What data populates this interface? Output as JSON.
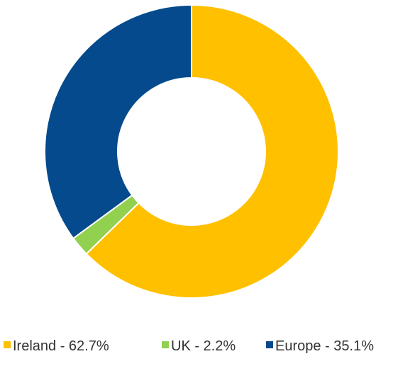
{
  "chart_data": {
    "type": "pie",
    "donut": true,
    "title": "",
    "legend_position": "bottom",
    "categories": [
      "Ireland - 62.7%",
      "UK - 2.2%",
      "Europe - 35.1%"
    ],
    "values": [
      62.7,
      2.2,
      35.1
    ],
    "colors": [
      "#FFC000",
      "#92D050",
      "#044A8C"
    ]
  }
}
